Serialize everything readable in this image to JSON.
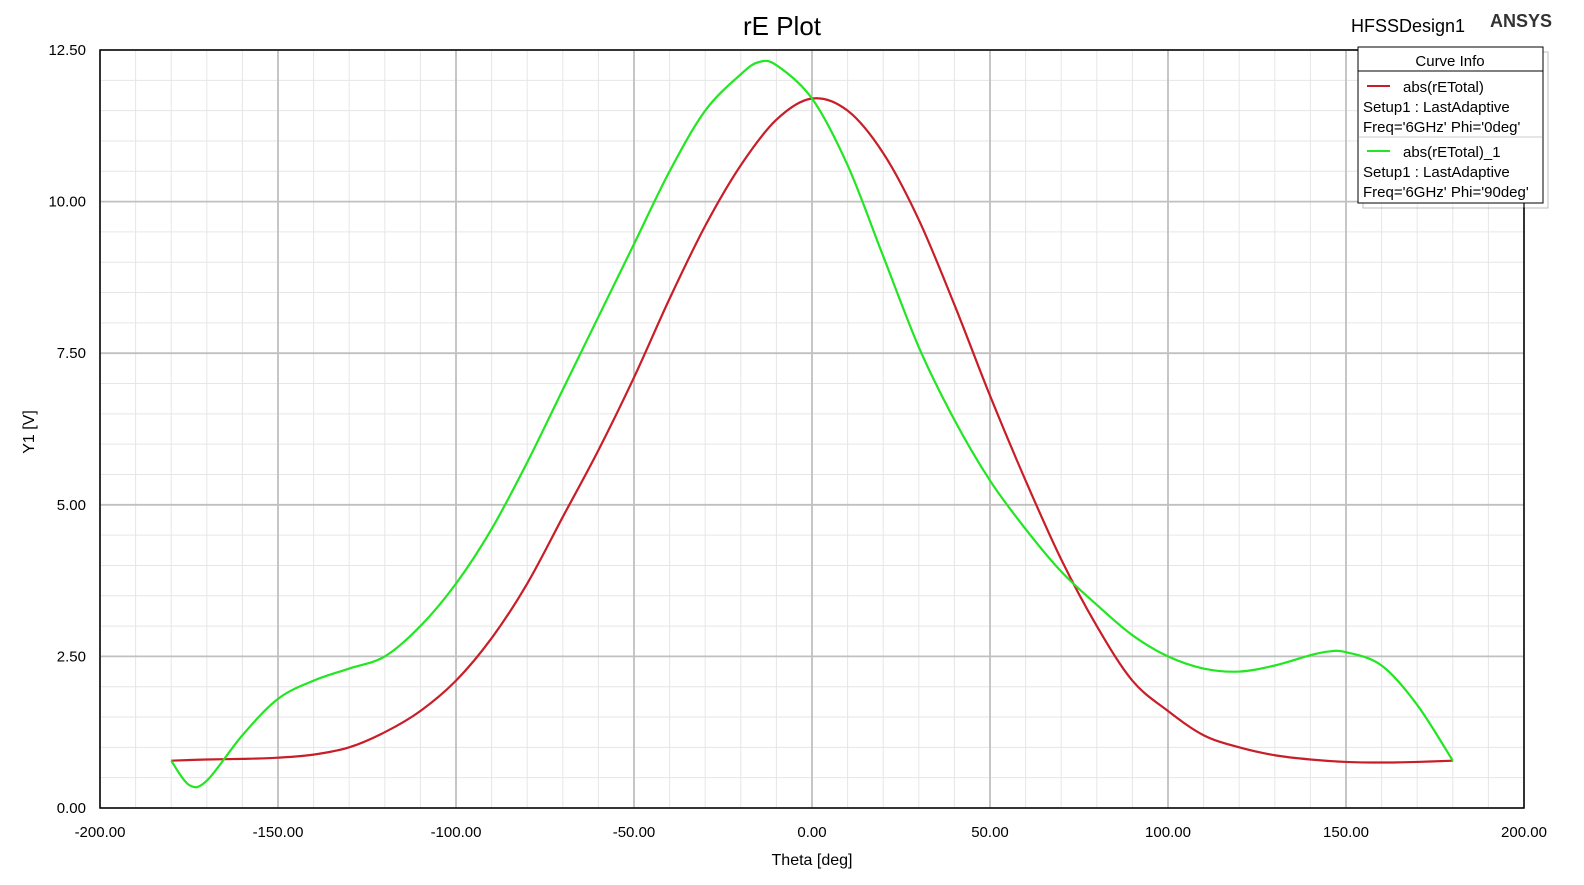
{
  "header": {
    "design_name": "HFSSDesign1",
    "brand": "ANSYS"
  },
  "colors": {
    "series_red": "#c81e28",
    "series_green": "#22e622",
    "major_grid": "#c0c0c0",
    "minor_grid": "#e6e6e6"
  },
  "legend": {
    "title": "Curve Info",
    "entries": [
      {
        "name": "abs(rETotal)",
        "line1": "Setup1 : LastAdaptive",
        "line2": "Freq='6GHz' Phi='0deg'"
      },
      {
        "name": "abs(rETotal)_1",
        "line1": "Setup1 : LastAdaptive",
        "line2": "Freq='6GHz' Phi='90deg'"
      }
    ]
  },
  "chart_data": {
    "type": "line",
    "title": "rE Plot",
    "xlabel": "Theta [deg]",
    "ylabel": "Y1 [V]",
    "xlim": [
      -200,
      200
    ],
    "ylim": [
      0,
      12.5
    ],
    "x_ticks": [
      "-200.00",
      "-150.00",
      "-100.00",
      "-50.00",
      "0.00",
      "50.00",
      "100.00",
      "150.00",
      "200.00"
    ],
    "y_ticks": [
      "0.00",
      "2.50",
      "5.00",
      "7.50",
      "10.00",
      "12.50"
    ],
    "grid": true,
    "legend_position": "top-right",
    "series": [
      {
        "name": "abs(rETotal)",
        "x": [
          -180,
          -170,
          -160,
          -150,
          -140,
          -130,
          -120,
          -110,
          -100,
          -90,
          -80,
          -70,
          -60,
          -50,
          -40,
          -30,
          -20,
          -10,
          0,
          10,
          20,
          30,
          40,
          50,
          60,
          70,
          80,
          90,
          100,
          110,
          120,
          130,
          140,
          150,
          160,
          170,
          180
        ],
        "y": [
          0.78,
          0.8,
          0.81,
          0.83,
          0.88,
          1.0,
          1.25,
          1.6,
          2.1,
          2.8,
          3.7,
          4.8,
          5.9,
          7.1,
          8.4,
          9.6,
          10.6,
          11.35,
          11.7,
          11.5,
          10.8,
          9.7,
          8.3,
          6.8,
          5.4,
          4.1,
          3.0,
          2.1,
          1.6,
          1.2,
          1.0,
          0.87,
          0.8,
          0.76,
          0.75,
          0.76,
          0.78
        ]
      },
      {
        "name": "abs(rETotal)_1",
        "x": [
          -180,
          -175,
          -170,
          -160,
          -150,
          -140,
          -130,
          -120,
          -110,
          -100,
          -90,
          -80,
          -70,
          -60,
          -50,
          -40,
          -30,
          -20,
          -15,
          -10,
          0,
          10,
          20,
          30,
          40,
          50,
          60,
          70,
          80,
          90,
          100,
          110,
          120,
          130,
          140,
          145,
          150,
          160,
          170,
          180
        ],
        "y": [
          0.78,
          0.38,
          0.45,
          1.2,
          1.8,
          2.1,
          2.3,
          2.5,
          3.0,
          3.7,
          4.6,
          5.7,
          6.9,
          8.1,
          9.3,
          10.5,
          11.5,
          12.1,
          12.3,
          12.25,
          11.7,
          10.6,
          9.1,
          7.6,
          6.4,
          5.4,
          4.6,
          3.9,
          3.35,
          2.85,
          2.5,
          2.3,
          2.25,
          2.35,
          2.52,
          2.58,
          2.57,
          2.35,
          1.7,
          0.78
        ]
      }
    ]
  }
}
